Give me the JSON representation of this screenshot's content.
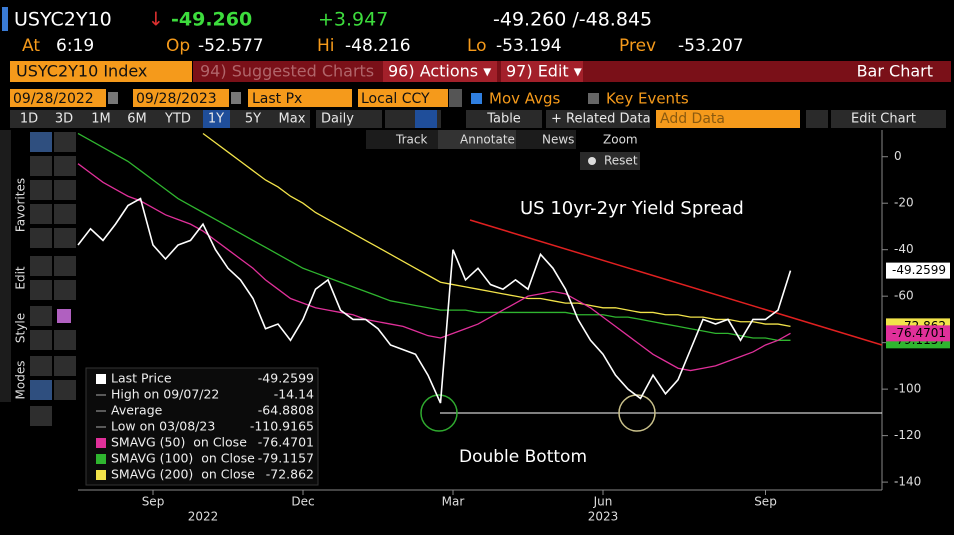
{
  "header": {
    "ticker": "USYC2Y10",
    "arrow": "↓",
    "last": "-49.260",
    "change": "+3.947",
    "bid_ask": "-49.260 /-48.845",
    "at_label": "At",
    "at": "6:19",
    "op_label": "Op",
    "op": "-52.577",
    "hi_label": "Hi",
    "hi": "-48.216",
    "lo_label": "Lo",
    "lo": "-53.194",
    "prev_label": "Prev",
    "prev": "-53.207"
  },
  "menu": {
    "security": "USYC2Y10 Index",
    "suggested": "94) Suggested Charts",
    "actions": "96) Actions ▾",
    "edit": "97) Edit ▾",
    "chart_type": "Bar Chart"
  },
  "settings": {
    "start": "09/28/2022",
    "end": "09/28/2023",
    "field": "Last Px",
    "currency": "Local CCY",
    "mov_avgs": "Mov Avgs",
    "key_events": "Key Events"
  },
  "toolbar": {
    "periods": [
      "1D",
      "3D",
      "1M",
      "6M",
      "YTD",
      "1Y",
      "5Y",
      "Max"
    ],
    "frequency": "Daily",
    "table": "Table",
    "related": "+ Related Data",
    "add_data": "Add Data",
    "edit_chart": "Edit Chart"
  },
  "chart_tools": [
    "Track",
    "Annotate",
    "News",
    "Zoom",
    "Reset"
  ],
  "side_tabs": [
    "Favorites",
    "Edit",
    "Style",
    "Modes"
  ],
  "annotations": {
    "title": "US 10yr-2yr Yield Spread",
    "pattern": "Double Bottom"
  },
  "chart_data": {
    "type": "line",
    "categories": [
      null,
      null,
      null,
      null,
      null,
      null,
      "Sep",
      null,
      null,
      null,
      null,
      null,
      null,
      null,
      null,
      null,
      null,
      null,
      "Dec",
      null,
      null,
      null,
      null,
      null,
      null,
      null,
      null,
      null,
      null,
      null,
      "Mar",
      null,
      null,
      null,
      null,
      null,
      null,
      null,
      null,
      null,
      null,
      null,
      "Jun",
      null,
      null,
      null,
      null,
      null,
      null,
      null,
      null,
      null,
      null,
      null,
      null,
      "Sep",
      null,
      null
    ],
    "x_years": [
      null,
      null,
      null,
      null,
      null,
      null,
      null,
      null,
      null,
      null,
      "2022",
      null,
      null,
      null,
      null,
      null,
      null,
      null,
      null,
      null,
      null,
      null,
      null,
      null,
      null,
      null,
      null,
      null,
      null,
      null,
      null,
      null,
      null,
      null,
      null,
      null,
      null,
      null,
      null,
      null,
      null,
      null,
      "2023",
      null,
      null,
      null,
      null,
      null,
      null,
      null,
      null,
      null,
      null,
      null,
      null,
      null,
      null,
      null
    ],
    "ylim": [
      -143.4,
      11.5
    ],
    "yticks": [
      0,
      -20,
      -40,
      -60,
      -80,
      -100,
      -120,
      -140
    ],
    "series": [
      {
        "name": "Last Price",
        "color": "#ffffff",
        "last_value": "-49.2599",
        "values": [
          -38,
          -31,
          -36,
          -29,
          -21,
          -18,
          -38,
          -44,
          -38,
          -36,
          -29,
          -40,
          -48,
          -53,
          -61,
          -74,
          -72,
          -79,
          -70,
          -57,
          -53,
          -66,
          -70,
          -70,
          -74,
          -81,
          -83,
          -85,
          -94,
          -106,
          -40,
          -53,
          -48,
          -55,
          -57,
          -53,
          -57,
          -42,
          -48,
          -57,
          -70,
          -79,
          -85,
          -94,
          -100,
          -104,
          -94,
          -102,
          -96,
          -83,
          -70,
          -72,
          -70,
          -79,
          -70,
          -70,
          -66,
          -49
        ]
      },
      {
        "name": "SMAVG (50)  on Close",
        "color": "#e0309a",
        "last_value": "-76.4701",
        "values": [
          -3,
          -7,
          -11,
          -14,
          -17,
          -19,
          -22,
          -25,
          -27,
          -29,
          -32,
          -36,
          -40,
          -44,
          -48,
          -53,
          -57,
          -61,
          -63,
          -65,
          -66,
          -67,
          -68,
          -70,
          -71,
          -72,
          -73,
          -75,
          -77,
          -78,
          -76,
          -74,
          -72,
          -69,
          -66,
          -63,
          -60,
          -59,
          -58,
          -59,
          -62,
          -65,
          -69,
          -73,
          -77,
          -81,
          -85,
          -88,
          -91,
          -92,
          -91,
          -90,
          -88,
          -86,
          -84,
          -81,
          -79,
          -76
        ]
      },
      {
        "name": "SMAVG (100)  on Close",
        "color": "#2fb52f",
        "last_value": "-79.1157",
        "values": [
          10,
          7,
          4,
          1,
          -2,
          -6,
          -10,
          -14,
          -18,
          -21,
          -24,
          -27,
          -30,
          -33,
          -36,
          -39,
          -42,
          -45,
          -48,
          -50,
          -52,
          -54,
          -56,
          -58,
          -60,
          -62,
          -63,
          -64,
          -65,
          -66,
          -66,
          -66,
          -67,
          -67,
          -67,
          -67,
          -67,
          -67,
          -67,
          -67,
          -68,
          -68,
          -68,
          -69,
          -69,
          -70,
          -71,
          -72,
          -73,
          -74,
          -75,
          -76,
          -76,
          -77,
          -78,
          -78,
          -79,
          -79
        ]
      },
      {
        "name": "SMAVG (200)  on Close",
        "color": "#f2e34a",
        "last_value": "-72.862",
        "values": [
          null,
          null,
          null,
          null,
          null,
          null,
          null,
          null,
          null,
          null,
          10,
          6,
          2,
          -2,
          -6,
          -10,
          -13,
          -17,
          -20,
          -24,
          -27,
          -30,
          -33,
          -36,
          -39,
          -42,
          -45,
          -48,
          -51,
          -54,
          -55,
          -56,
          -57,
          -58,
          -59,
          -60,
          -61,
          -61,
          -62,
          -63,
          -63,
          -64,
          -65,
          -65,
          -66,
          -67,
          -67,
          -68,
          -68,
          -69,
          -69,
          -70,
          -70,
          -71,
          -71,
          -72,
          -72,
          -73
        ]
      }
    ],
    "stats": [
      {
        "label": "High on 09/07/22",
        "value": "-14.14"
      },
      {
        "label": "Average",
        "value": "-64.8808"
      },
      {
        "label": "Low on 03/08/23",
        "value": "-110.9165"
      }
    ]
  }
}
